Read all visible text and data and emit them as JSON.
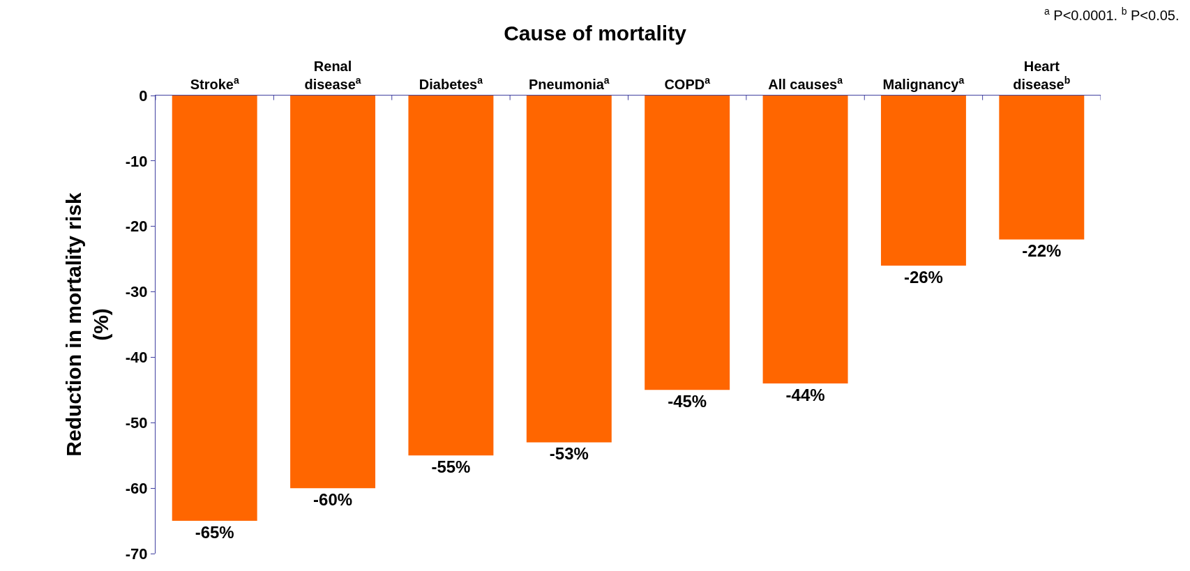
{
  "chart_data": {
    "type": "bar",
    "title": "Cause of mortality",
    "categories": [
      "Stroke$^{a}$",
      "Renal\ndisease$^{a}$",
      "Diabetes$^{a}$",
      "Pneumonia$^{a}$",
      "COPD$^{a}$",
      "All causes$^{a}$",
      "Malignancy$^{a}$",
      "Heart\ndisease$^{b}$"
    ],
    "values": [
      -65,
      -60,
      -55,
      -53,
      -45,
      -44,
      -26,
      -22
    ],
    "value_labels": [
      "-65%",
      "-60%",
      "-55%",
      "-53%",
      "-45%",
      "-44%",
      "-26%",
      "-22%"
    ],
    "color": "#ff6600",
    "ylabel": "Reduction in mortality risk\n(%)",
    "ylim": [
      -70,
      0
    ],
    "yticks": [
      0,
      -10,
      -20,
      -30,
      -40,
      -50,
      -60,
      -70
    ],
    "annotations": [
      "$^{a}$ P<0.0001. $^{b}$ P<0.05."
    ]
  }
}
